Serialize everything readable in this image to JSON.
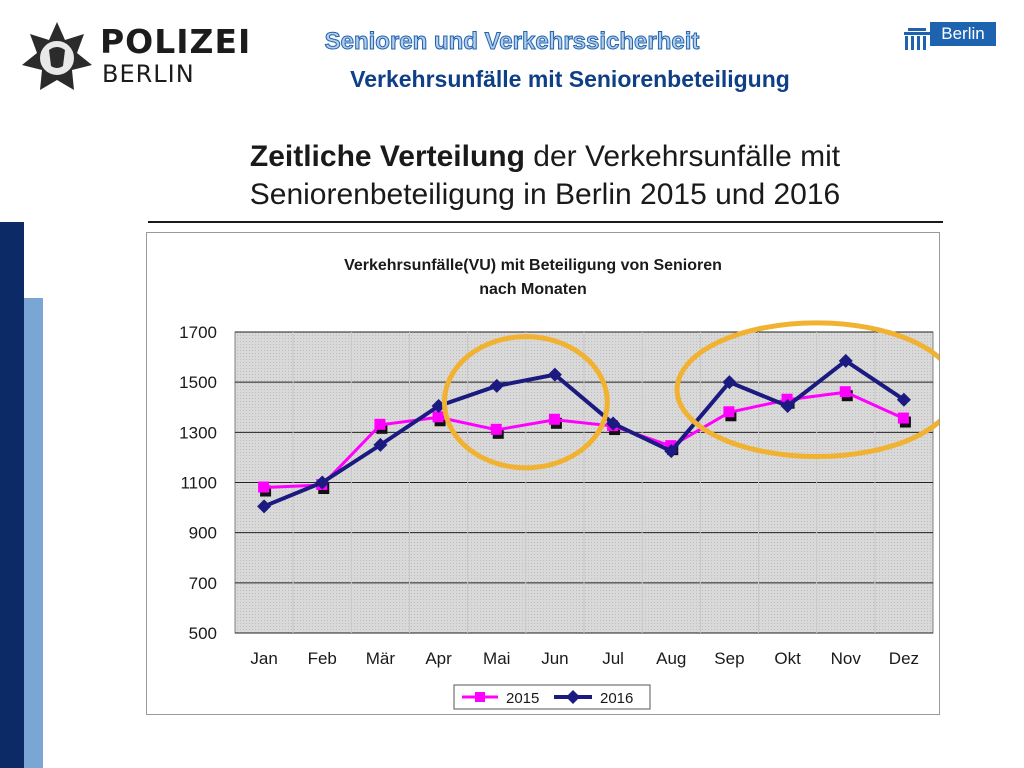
{
  "header": {
    "logo": {
      "line1": "POLIZEI",
      "line2": "BERLIN"
    },
    "berlin_logo": {
      "text": "Berlin"
    },
    "title": "Senioren und Verkehrssicherheit",
    "subtitle": "Verkehrsunfälle mit Seniorenbeteiligung"
  },
  "heading": {
    "bold": "Zeitliche Verteilung",
    "rest_line1": " der Verkehrsunfälle mit",
    "line2": "Seniorenbeteiligung in Berlin 2015 und 2016"
  },
  "colors": {
    "series_2015": "#ff00ff",
    "series_2016": "#1a1a80",
    "highlight": "#f1b232",
    "plot_bg": "#d9d9d9"
  },
  "chart_data": {
    "type": "line",
    "title": "Verkehrsunfälle(VU) mit Beteiligung von Senioren",
    "subtitle": "nach Monaten",
    "categories": [
      "Jan",
      "Feb",
      "Mär",
      "Apr",
      "Mai",
      "Jun",
      "Jul",
      "Aug",
      "Sep",
      "Okt",
      "Nov",
      "Dez"
    ],
    "series": [
      {
        "name": "2015",
        "values": [
          1080,
          1090,
          1330,
          1360,
          1310,
          1350,
          1325,
          1245,
          1380,
          1430,
          1460,
          1355
        ]
      },
      {
        "name": "2016",
        "values": [
          1005,
          1100,
          1250,
          1405,
          1485,
          1530,
          1335,
          1225,
          1500,
          1405,
          1585,
          1430
        ]
      }
    ],
    "ylim": [
      500,
      1700
    ],
    "yticks": [
      500,
      700,
      900,
      1100,
      1300,
      1500,
      1700
    ],
    "grid": true,
    "legend": "bottom",
    "highlights": [
      {
        "from": "Mai",
        "to": "Jun"
      },
      {
        "from": "Sep",
        "to": "Dez"
      }
    ]
  }
}
